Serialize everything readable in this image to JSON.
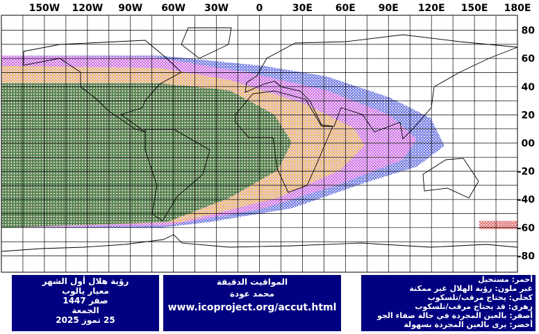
{
  "map": {
    "lon_ticks": [
      "150W",
      "120W",
      "90W",
      "60W",
      "30W",
      "0",
      "30E",
      "60E",
      "90E",
      "120E",
      "150E",
      "180E"
    ],
    "lat_ticks": [
      "80",
      "60",
      "40",
      "20",
      "00",
      "-20",
      "-40",
      "-60",
      "-80"
    ]
  },
  "info": {
    "title": "رؤية هلال أول الشهر",
    "criterion": "معيار يالوب",
    "hijri_month": "صفر 1447",
    "weekday": "الجمعة",
    "date": "25 تموز 2025"
  },
  "credits": {
    "title": "المواقيت الدقيقة",
    "author": "محمد عودة",
    "url": "www.icoproject.org/accut.html"
  },
  "legend": [
    "أحمر: مستحيل",
    "غير ملون: رؤية الهلال غير ممكنة",
    "كحلي: يحتاج مرقب/تلسكوب",
    "زهري: قد يحتاج مرقب/تلسكوب",
    "أصفر: بالعين المجردة في حالة صفاء الجو",
    "أخضر: يرى بالعين المجردة بسهولة"
  ]
}
